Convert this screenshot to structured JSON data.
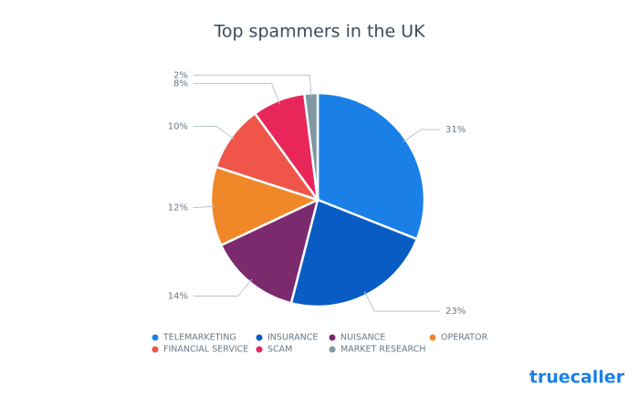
{
  "chart_data": {
    "type": "pie",
    "title": "Top spammers in the UK",
    "categories": [
      "TELEMARKETING",
      "INSURANCE",
      "NUISANCE",
      "OPERATOR",
      "FINANCIAL SERVICE",
      "SCAM",
      "MARKET RESEARCH"
    ],
    "values": [
      31,
      23,
      14,
      12,
      10,
      8,
      2
    ],
    "value_labels": [
      "31%",
      "23%",
      "14%",
      "12%",
      "10%",
      "8%",
      "2%"
    ],
    "colors": [
      "#1a80e8",
      "#0a5cc5",
      "#7c2a6e",
      "#f0882a",
      "#ef5548",
      "#e8265a",
      "#7f98a2"
    ]
  },
  "brand": "truecaller"
}
